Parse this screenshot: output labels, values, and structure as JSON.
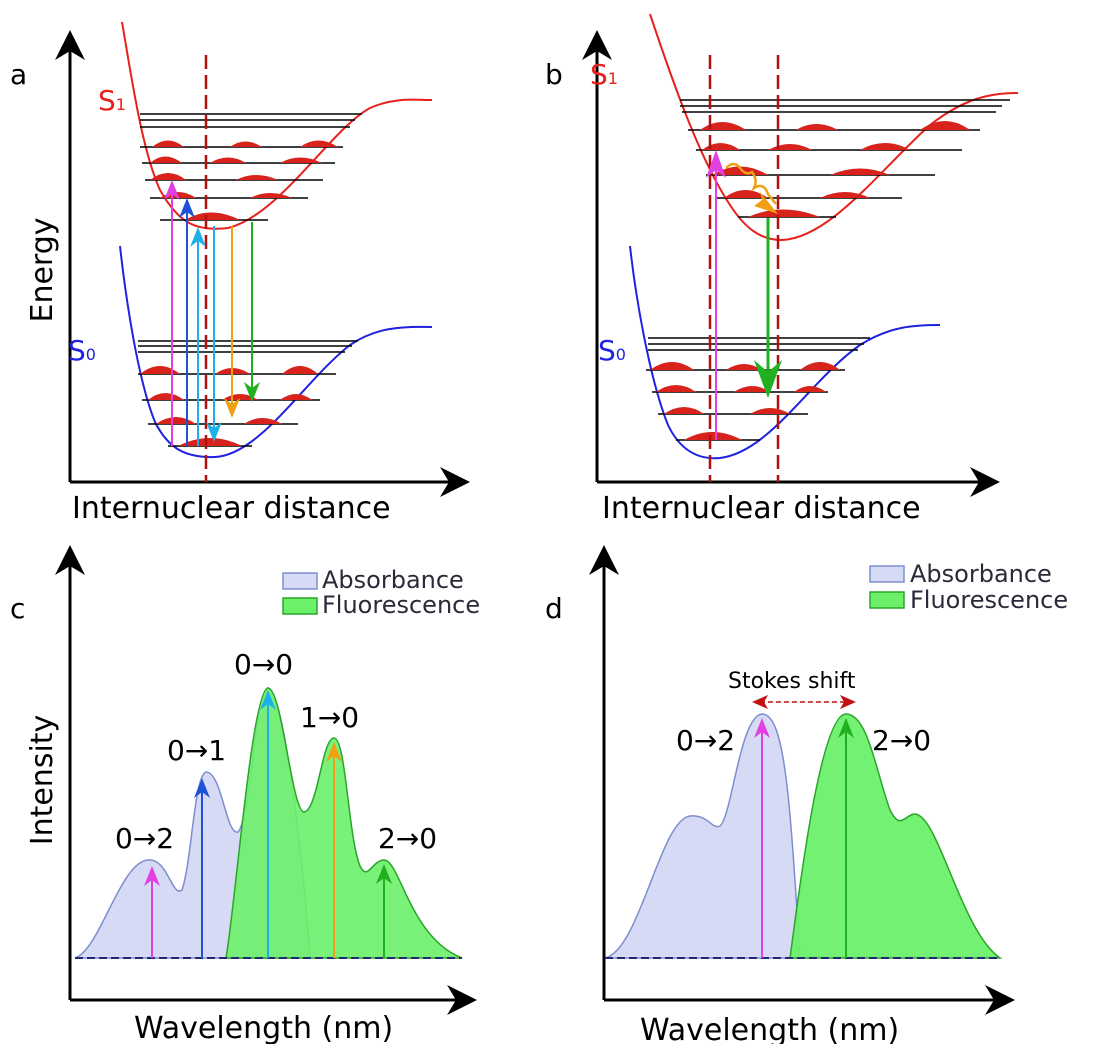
{
  "panels": {
    "a": {
      "letter": "a",
      "s1": "S",
      "s1_sub": "1",
      "s0": "S",
      "s0_sub": "0",
      "y_title": "Energy",
      "x_title": "Internuclear distance"
    },
    "b": {
      "letter": "b",
      "s1": "S",
      "s1_sub": "1",
      "s0": "S",
      "s0_sub": "0",
      "x_title": "Internuclear distance"
    },
    "c": {
      "letter": "c",
      "y_title": "Intensity",
      "x_title": "Wavelength (nm)",
      "peak_labels": [
        "0→2",
        "0→1",
        "0→0",
        "1→0",
        "2→0"
      ]
    },
    "d": {
      "letter": "d",
      "x_title": "Wavelength (nm)",
      "stokes": "Stokes shift",
      "peak_labels": [
        "0→2",
        "2→0"
      ]
    }
  },
  "legend": {
    "absorbance": "Absorbance",
    "fluorescence": "Fluorescence"
  },
  "colors": {
    "s1_curve": "#e8201c",
    "s0_curve": "#1f22e0",
    "wavefunction": "#d7231c",
    "dashed_axis": "#b01010",
    "absorbance_fill": "#d6daf4",
    "absorbance_edge": "#7e8ecf",
    "fluorescence_fill": "#6cf06a",
    "fluorescence_edge": "#2aa52a",
    "arrow_magenta": "#e040e0",
    "arrow_blue": "#2050d8",
    "arrow_cyan": "#20b0e8",
    "arrow_orange": "#f0a010",
    "arrow_green": "#20b020"
  }
}
